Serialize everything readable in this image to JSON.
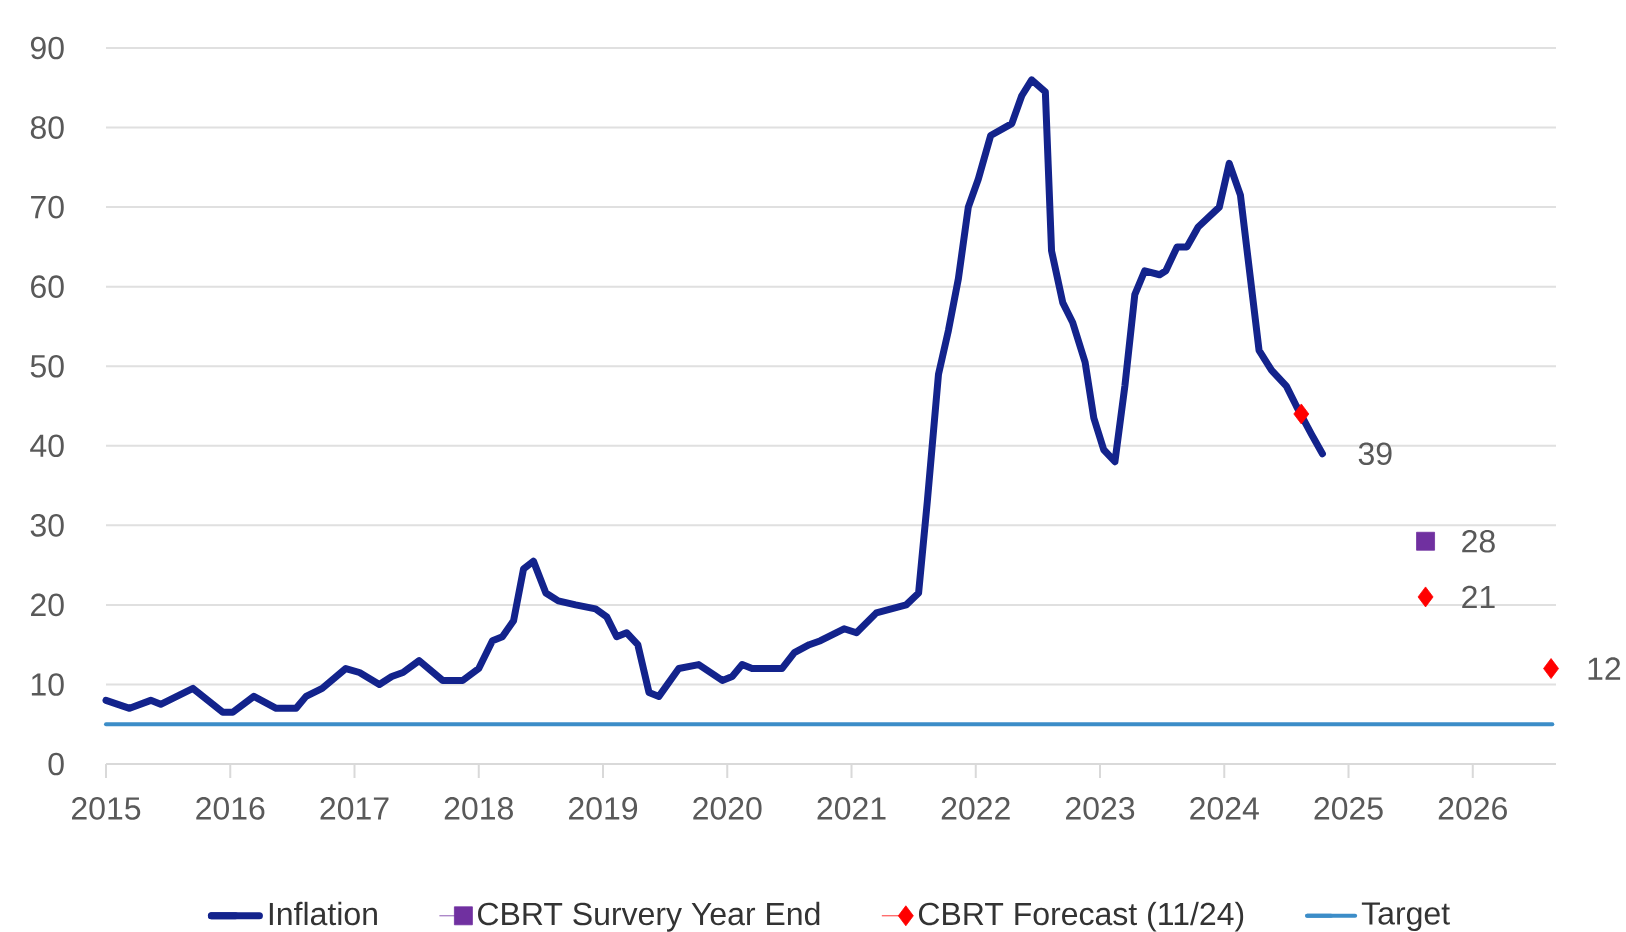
{
  "chart_data": {
    "type": "line",
    "xlim": [
      2015,
      2026.67
    ],
    "ylim": [
      0,
      90
    ],
    "xticks": [
      2015,
      2016,
      2017,
      2018,
      2019,
      2020,
      2021,
      2022,
      2023,
      2024,
      2025,
      2026
    ],
    "yticks": [
      0,
      10,
      20,
      30,
      40,
      50,
      60,
      70,
      80,
      90
    ],
    "grid": "y",
    "legend": "bottom",
    "series": [
      {
        "name": "Inflation",
        "color": "#13238c",
        "marker": "none",
        "x": [
          2015.0,
          2015.19,
          2015.36,
          2015.44,
          2015.7,
          2015.94,
          2016.02,
          2016.19,
          2016.37,
          2016.53,
          2016.61,
          2016.74,
          2016.93,
          2017.04,
          2017.2,
          2017.3,
          2017.39,
          2017.52,
          2017.71,
          2017.87,
          2018.0,
          2018.11,
          2018.19,
          2018.28,
          2018.36,
          2018.44,
          2018.54,
          2018.64,
          2018.78,
          2018.94,
          2019.03,
          2019.11,
          2019.19,
          2019.28,
          2019.37,
          2019.45,
          2019.61,
          2019.77,
          2019.96,
          2020.04,
          2020.12,
          2020.2,
          2020.44,
          2020.54,
          2020.66,
          2020.75,
          2020.94,
          2021.04,
          2021.2,
          2021.44,
          2021.54,
          2021.61,
          2021.7,
          2021.78,
          2021.86,
          2021.94,
          2022.02,
          2022.12,
          2022.29,
          2022.37,
          2022.45,
          2022.56,
          2022.61,
          2022.7,
          2022.78,
          2022.88,
          2022.95,
          2023.03,
          2023.12,
          2023.2,
          2023.28,
          2023.36,
          2023.48,
          2023.53,
          2023.62,
          2023.7,
          2023.79,
          2023.96,
          2024.04,
          2024.13,
          2024.28,
          2024.38,
          2024.5,
          2024.58,
          2024.7,
          2024.79
        ],
        "values": [
          8,
          7,
          8,
          7.5,
          9.5,
          6.5,
          6.5,
          8.5,
          7,
          7,
          8.5,
          9.5,
          12,
          11.5,
          10,
          11,
          11.5,
          13,
          10.5,
          10.5,
          12,
          15.5,
          16,
          18,
          24.5,
          25.5,
          21.5,
          20.5,
          20,
          19.5,
          18.5,
          16,
          16.5,
          15,
          9,
          8.5,
          12,
          12.5,
          10.5,
          11,
          12.5,
          12,
          12,
          14,
          15,
          15.5,
          17,
          16.5,
          19,
          20,
          21.5,
          33,
          49,
          54.5,
          61,
          70,
          73.5,
          79,
          80.5,
          84,
          86,
          84.5,
          64.5,
          58,
          55.5,
          50.5,
          43.5,
          39.5,
          38,
          47.5,
          59,
          62,
          61.5,
          62,
          65,
          65,
          67.5,
          70,
          75.5,
          71.5,
          52,
          49.5,
          47.5,
          45,
          41.5,
          39
        ],
        "value_labels": [
          null,
          null,
          null,
          null,
          null,
          null,
          null,
          null,
          null,
          null,
          null,
          null,
          null,
          null,
          null,
          null,
          null,
          null,
          null,
          null,
          null,
          null,
          null,
          null,
          null,
          null,
          null,
          null,
          null,
          null,
          null,
          null,
          null,
          null,
          null,
          null,
          null,
          null,
          null,
          null,
          null,
          null,
          null,
          null,
          null,
          null,
          null,
          null,
          null,
          null,
          null,
          null,
          null,
          null,
          null,
          null,
          null,
          null,
          null,
          null,
          null,
          null,
          null,
          null,
          null,
          null,
          null,
          null,
          null,
          null,
          null,
          null,
          null,
          null,
          null,
          null,
          null,
          null,
          null,
          null,
          null,
          null,
          null,
          null,
          null,
          "39"
        ]
      },
      {
        "name": "CBRT Survery Year End",
        "type": "scatter",
        "color": "#7030a0",
        "marker": "square",
        "x": [
          2025.62
        ],
        "values": [
          28
        ],
        "value_labels": [
          "28"
        ]
      },
      {
        "name": "CBRT Forecast (11/24)",
        "type": "scatter",
        "color": "#ff0000",
        "marker": "diamond",
        "x": [
          2024.62,
          2025.62,
          2026.63
        ],
        "values": [
          44,
          21,
          12
        ],
        "value_labels": [
          null,
          "21",
          "12"
        ]
      },
      {
        "name": "Target",
        "color": "#3c8dc8",
        "marker": "none",
        "x": [
          2015,
          2026.64
        ],
        "values": [
          5,
          5
        ]
      }
    ]
  }
}
